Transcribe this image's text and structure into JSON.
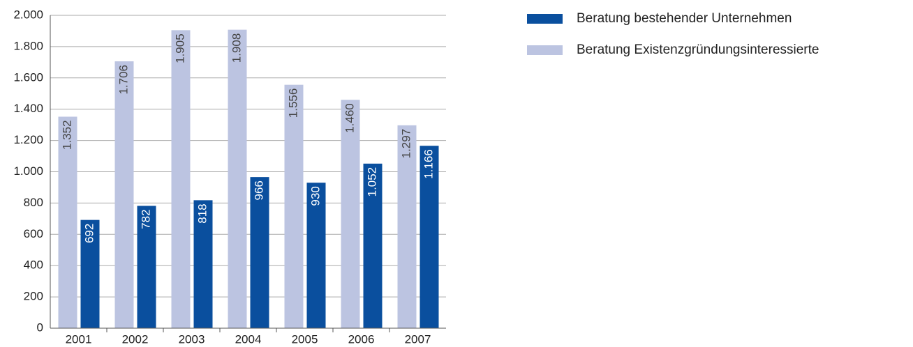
{
  "chart_data": {
    "type": "bar",
    "categories": [
      "2001",
      "2002",
      "2003",
      "2004",
      "2005",
      "2006",
      "2007"
    ],
    "series": [
      {
        "name": "Beratung bestehender Unternehmen",
        "color": "#0a4f9e",
        "values": [
          692,
          782,
          818,
          966,
          930,
          1052,
          1166
        ],
        "value_labels": [
          "692",
          "782",
          "818",
          "966",
          "930",
          "1.052",
          "1.166"
        ]
      },
      {
        "name": "Beratung Existenzgründungsinteressierte",
        "color": "#bcc4e1",
        "values": [
          1352,
          1706,
          1905,
          1908,
          1556,
          1460,
          1297
        ],
        "value_labels": [
          "1.352",
          "1.706",
          "1.905",
          "1.908",
          "1.556",
          "1.460",
          "1.297"
        ]
      }
    ],
    "ylim": [
      0,
      2000
    ],
    "yticks": [
      0,
      200,
      400,
      600,
      800,
      {
        "value": 1000,
        "label": "1.000"
      },
      {
        "value": 1200,
        "label": "1.200"
      },
      {
        "value": 1400,
        "label": "1.400"
      },
      {
        "value": 1600,
        "label": "1.600"
      },
      {
        "value": 1800,
        "label": "1.800"
      },
      {
        "value": 2000,
        "label": "2.000"
      }
    ],
    "grid": true,
    "legend": "top-right"
  }
}
